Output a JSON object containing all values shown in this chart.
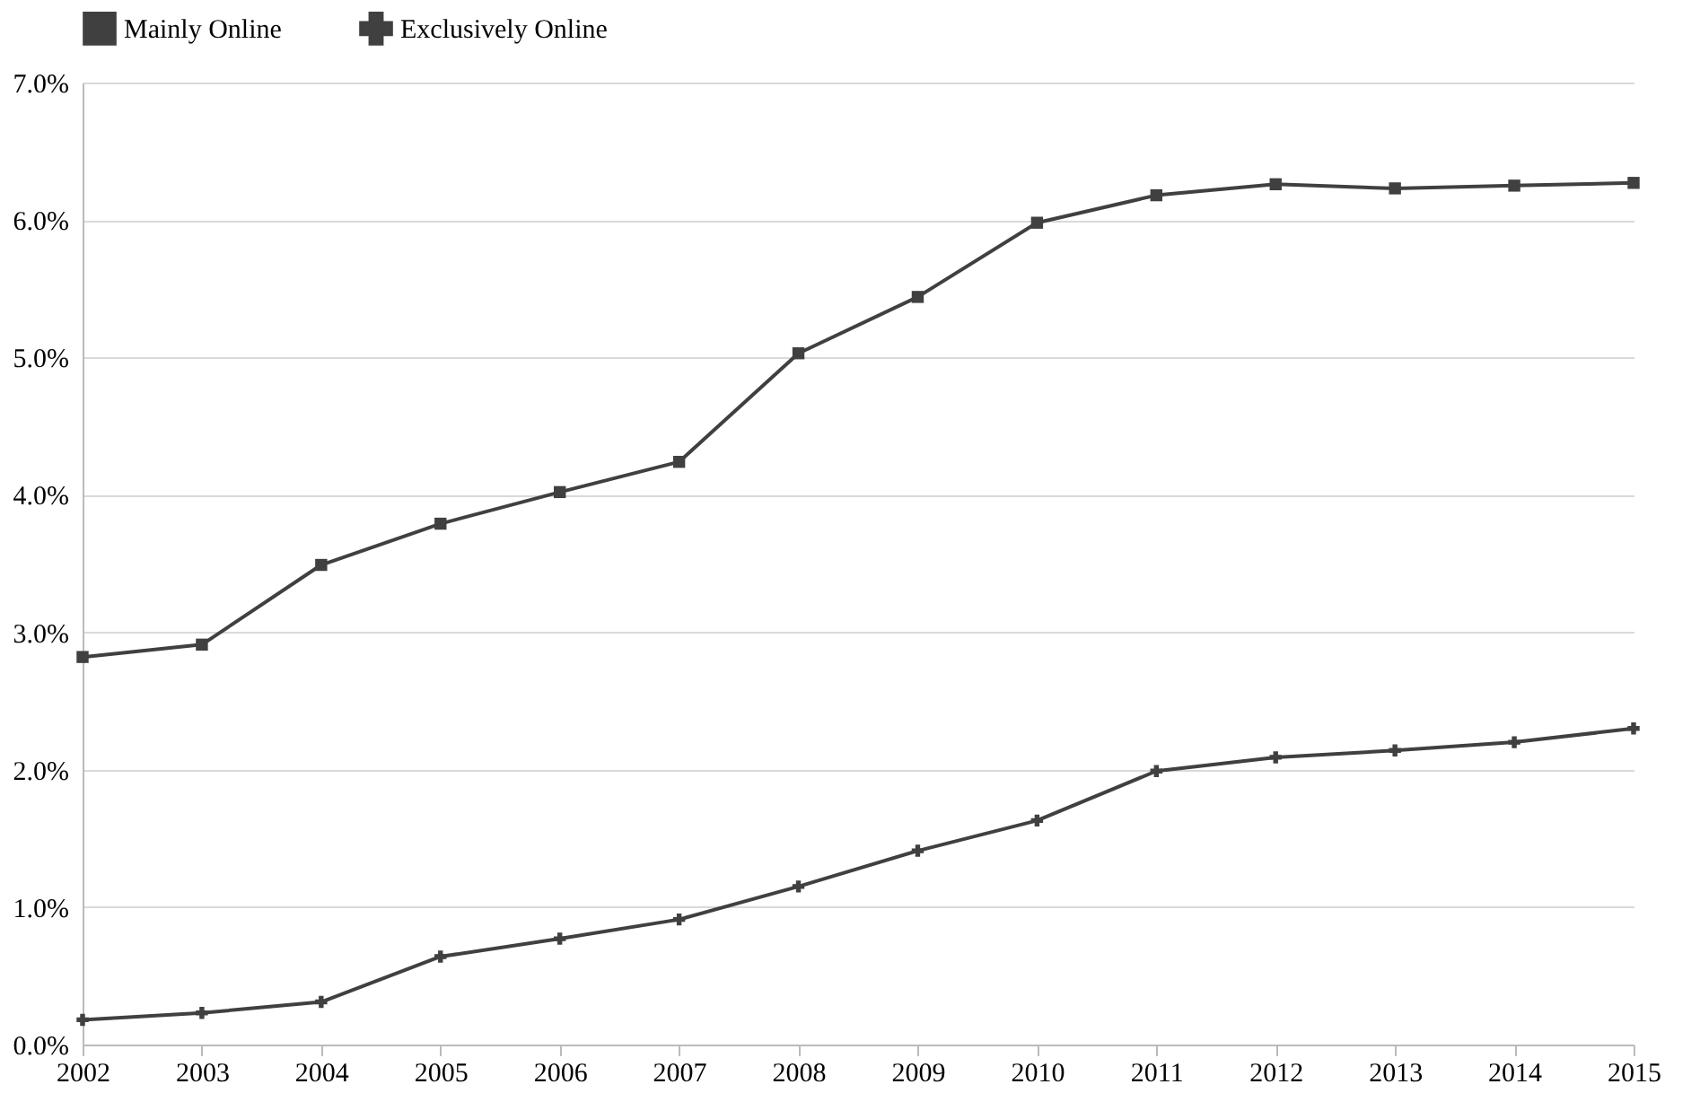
{
  "chart_data": {
    "type": "line",
    "categories": [
      "2002",
      "2003",
      "2004",
      "2005",
      "2006",
      "2007",
      "2008",
      "2009",
      "2010",
      "2011",
      "2012",
      "2013",
      "2014",
      "2015"
    ],
    "series": [
      {
        "name": "Mainly Online",
        "color": "#404040",
        "marker": "square",
        "values": [
          2.82,
          2.91,
          3.49,
          3.79,
          4.02,
          4.24,
          5.03,
          5.44,
          5.98,
          6.18,
          6.26,
          6.23,
          6.25,
          6.27
        ]
      },
      {
        "name": "Exclusively Online",
        "color": "#404040",
        "marker": "cross",
        "values": [
          0.18,
          0.23,
          0.31,
          0.64,
          0.77,
          0.91,
          1.15,
          1.41,
          1.63,
          1.99,
          2.09,
          2.14,
          2.2,
          2.3
        ]
      }
    ],
    "ylim": [
      0,
      7
    ],
    "yticks": [
      {
        "value": 0,
        "label": "0.0%"
      },
      {
        "value": 1,
        "label": "1.0%"
      },
      {
        "value": 2,
        "label": "2.0%"
      },
      {
        "value": 3,
        "label": "3.0%"
      },
      {
        "value": 4,
        "label": "4.0%"
      },
      {
        "value": 5,
        "label": "5.0%"
      },
      {
        "value": 6,
        "label": "6.0%"
      },
      {
        "value": 7,
        "label": "7.0%"
      }
    ],
    "grid": "y",
    "legend": "top",
    "line_style": "solid"
  }
}
